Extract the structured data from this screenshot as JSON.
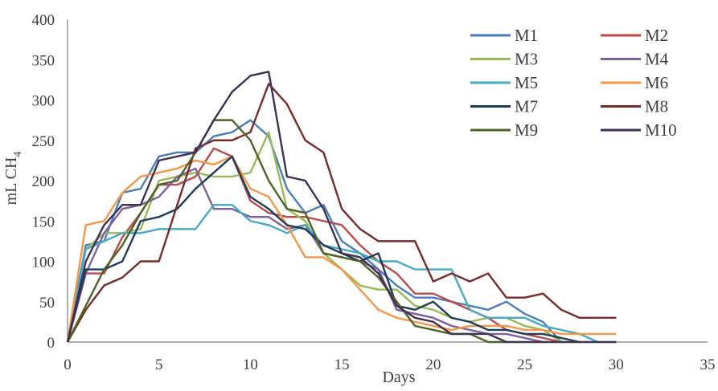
{
  "chart_data": {
    "type": "line",
    "title": "",
    "xlabel": "Days",
    "ylabel": "mL CH",
    "ylabel_subscript": "4",
    "xlim": [
      0,
      35
    ],
    "ylim": [
      0,
      400
    ],
    "x_ticks": [
      0,
      5,
      10,
      15,
      20,
      25,
      30,
      35
    ],
    "y_ticks": [
      0,
      50,
      100,
      150,
      200,
      250,
      300,
      350,
      400
    ],
    "grid": false,
    "legend": "top-right",
    "series": [
      {
        "name": "M1",
        "color": "#4a7ebb",
        "x": [
          0,
          1,
          2,
          3,
          4,
          5,
          6,
          7,
          8,
          9,
          10,
          11,
          12,
          13,
          14,
          15,
          16,
          17,
          18,
          19,
          20,
          21,
          22,
          23,
          24,
          25,
          26,
          27
        ],
        "y": [
          0,
          120,
          125,
          185,
          190,
          230,
          235,
          235,
          255,
          260,
          275,
          255,
          190,
          160,
          170,
          125,
          110,
          90,
          70,
          55,
          55,
          50,
          45,
          40,
          50,
          35,
          25,
          0
        ]
      },
      {
        "name": "M2",
        "color": "#be4b48",
        "x": [
          0,
          1,
          2,
          3,
          4,
          5,
          6,
          7,
          8,
          9,
          10,
          11,
          12,
          13,
          14,
          15,
          16,
          17,
          18,
          19,
          20,
          21,
          22,
          23,
          24,
          25,
          26,
          27
        ],
        "y": [
          0,
          85,
          85,
          130,
          160,
          195,
          195,
          205,
          240,
          230,
          175,
          160,
          155,
          155,
          150,
          145,
          120,
          100,
          85,
          60,
          60,
          50,
          40,
          30,
          15,
          10,
          5,
          0
        ]
      },
      {
        "name": "M3",
        "color": "#98b954",
        "x": [
          0,
          1,
          2,
          3,
          4,
          5,
          6,
          7,
          8,
          9,
          10,
          11,
          12,
          13,
          14,
          15,
          16,
          17,
          18,
          19,
          20,
          21,
          22,
          23,
          24,
          25,
          26,
          27
        ],
        "y": [
          0,
          115,
          135,
          135,
          140,
          200,
          205,
          210,
          205,
          205,
          210,
          260,
          165,
          150,
          110,
          90,
          70,
          65,
          65,
          45,
          40,
          30,
          25,
          30,
          30,
          20,
          15,
          0
        ]
      },
      {
        "name": "M4",
        "color": "#7d60a0",
        "x": [
          0,
          1,
          2,
          3,
          4,
          5,
          6,
          7,
          8,
          9,
          10,
          11,
          12,
          13,
          14,
          15,
          16,
          17,
          18,
          19,
          20,
          21,
          22,
          23,
          24,
          25,
          26
        ],
        "y": [
          0,
          85,
          135,
          165,
          170,
          180,
          205,
          215,
          165,
          165,
          155,
          155,
          140,
          145,
          110,
          105,
          100,
          90,
          40,
          35,
          30,
          20,
          15,
          10,
          10,
          5,
          0
        ]
      },
      {
        "name": "M5",
        "color": "#46aac5",
        "x": [
          0,
          1,
          2,
          3,
          4,
          5,
          6,
          7,
          8,
          9,
          10,
          11,
          12,
          13,
          14,
          15,
          16,
          17,
          18,
          19,
          20,
          21,
          22,
          23,
          24,
          25,
          26,
          27,
          28,
          29
        ],
        "y": [
          0,
          115,
          125,
          135,
          135,
          140,
          140,
          140,
          170,
          170,
          150,
          145,
          135,
          145,
          120,
          115,
          110,
          100,
          100,
          90,
          90,
          90,
          40,
          30,
          30,
          30,
          20,
          15,
          10,
          0
        ]
      },
      {
        "name": "M6",
        "color": "#f79646",
        "x": [
          0,
          1,
          2,
          3,
          4,
          5,
          6,
          7,
          8,
          9,
          10,
          11,
          12,
          13,
          14,
          15,
          16,
          17,
          18,
          19,
          20,
          21,
          22,
          23,
          24,
          25,
          26,
          27,
          28,
          29,
          30
        ],
        "y": [
          0,
          145,
          150,
          185,
          205,
          210,
          215,
          225,
          220,
          230,
          190,
          180,
          145,
          105,
          105,
          90,
          65,
          40,
          30,
          25,
          20,
          15,
          20,
          20,
          20,
          15,
          15,
          10,
          10,
          10,
          10
        ]
      },
      {
        "name": "M7",
        "color": "#1f3c5a",
        "x": [
          0,
          1,
          2,
          3,
          4,
          5,
          6,
          7,
          8,
          9,
          10,
          11,
          12,
          13,
          14,
          15,
          16,
          17,
          18,
          19,
          20,
          21,
          22,
          23,
          24,
          25,
          26,
          27,
          28
        ],
        "y": [
          0,
          90,
          90,
          100,
          150,
          155,
          165,
          190,
          210,
          230,
          180,
          165,
          145,
          140,
          120,
          110,
          100,
          110,
          45,
          40,
          50,
          30,
          25,
          15,
          15,
          10,
          10,
          5,
          0
        ]
      },
      {
        "name": "M8",
        "color": "#772c2a",
        "x": [
          0,
          1,
          2,
          3,
          4,
          5,
          6,
          7,
          8,
          9,
          10,
          11,
          12,
          13,
          14,
          15,
          16,
          17,
          18,
          19,
          20,
          21,
          22,
          23,
          24,
          25,
          26,
          27,
          28,
          29,
          30
        ],
        "y": [
          0,
          40,
          70,
          80,
          100,
          100,
          170,
          240,
          250,
          250,
          260,
          320,
          295,
          250,
          235,
          165,
          140,
          125,
          125,
          125,
          75,
          85,
          75,
          85,
          55,
          55,
          60,
          40,
          30,
          30,
          30
        ]
      },
      {
        "name": "M9",
        "color": "#4f6228",
        "x": [
          0,
          1,
          2,
          3,
          4,
          5,
          6,
          7,
          8,
          9,
          10,
          11,
          12,
          13,
          14,
          15,
          16,
          17,
          18,
          19,
          20,
          21,
          22,
          23,
          24
        ],
        "y": [
          0,
          45,
          90,
          120,
          160,
          195,
          200,
          235,
          275,
          275,
          250,
          200,
          165,
          160,
          110,
          105,
          100,
          80,
          50,
          20,
          15,
          10,
          10,
          0,
          0
        ]
      },
      {
        "name": "M10",
        "color": "#3f3151",
        "x": [
          0,
          1,
          2,
          3,
          4,
          5,
          6,
          7,
          8,
          9,
          10,
          11,
          12,
          13,
          14,
          15,
          16,
          17,
          18,
          19,
          20,
          21,
          22,
          23,
          24,
          25,
          26,
          27,
          28,
          29,
          30
        ],
        "y": [
          0,
          100,
          145,
          170,
          170,
          225,
          230,
          235,
          275,
          310,
          330,
          335,
          205,
          200,
          165,
          110,
          105,
          85,
          45,
          30,
          25,
          10,
          10,
          10,
          0,
          0,
          0,
          0,
          0,
          0,
          0
        ]
      }
    ]
  }
}
